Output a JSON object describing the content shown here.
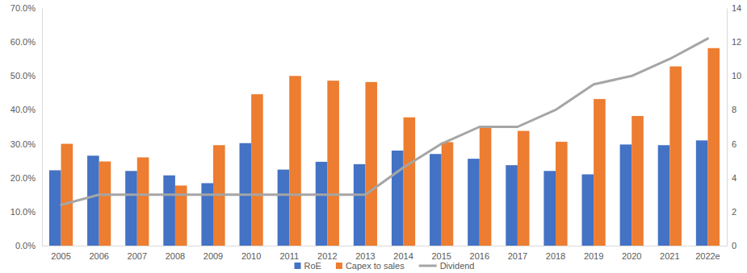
{
  "chart_data": {
    "type": "bar",
    "categories": [
      "2005",
      "2006",
      "2007",
      "2008",
      "2009",
      "2010",
      "2011",
      "2012",
      "2013",
      "2014",
      "2015",
      "2016",
      "2017",
      "2018",
      "2019",
      "2020",
      "2021",
      "2022e"
    ],
    "series": [
      {
        "name": "RoE",
        "type": "bar",
        "color": "#4472c4",
        "values": [
          22.2,
          26.5,
          22.0,
          20.7,
          18.4,
          30.2,
          22.4,
          24.7,
          24.0,
          28.0,
          27.0,
          25.6,
          23.7,
          22.0,
          21.0,
          29.8,
          29.6,
          31.0
        ]
      },
      {
        "name": "Capex to sales",
        "type": "bar",
        "color": "#ed7d31",
        "values": [
          30.0,
          24.8,
          26.0,
          17.7,
          29.6,
          44.6,
          50.0,
          48.6,
          48.2,
          37.8,
          30.5,
          35.0,
          33.8,
          30.6,
          43.2,
          38.2,
          52.8,
          58.2
        ]
      },
      {
        "name": "Dividend",
        "type": "line",
        "axis": "y2",
        "color": "#a5a5a5",
        "values": [
          2.4,
          3,
          3,
          3,
          3,
          3,
          3,
          3,
          3,
          4.6,
          6,
          7,
          7,
          8,
          9.5,
          10,
          11,
          12.2
        ]
      }
    ],
    "ylim": [
      0,
      70
    ],
    "yticks": [
      {
        "value": 0,
        "label": "0.0%"
      },
      {
        "value": 10,
        "label": "10.0%"
      },
      {
        "value": 20,
        "label": "20.0%"
      },
      {
        "value": 30,
        "label": "30.0%"
      },
      {
        "value": 40,
        "label": "40.0%"
      },
      {
        "value": 50,
        "label": "50.0%"
      },
      {
        "value": 60,
        "label": "60.0%"
      },
      {
        "value": 70,
        "label": "70.0%"
      }
    ],
    "y2lim": [
      0,
      14
    ],
    "y2ticks": [
      0,
      2,
      4,
      6,
      8,
      10,
      12,
      14
    ],
    "grid": false,
    "legend": "bottom"
  }
}
